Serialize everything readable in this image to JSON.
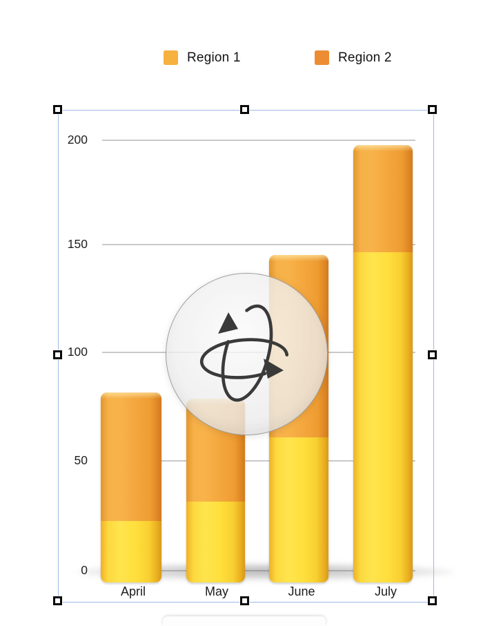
{
  "legend": {
    "items": [
      {
        "label": "Region 1",
        "color": "#F6B13F"
      },
      {
        "label": "Region 2",
        "color": "#EE8C33"
      }
    ]
  },
  "chart_data": {
    "type": "bar",
    "variant": "3d-stacked-column",
    "stacked": true,
    "title": "",
    "categories": [
      "April",
      "May",
      "June",
      "July"
    ],
    "series": [
      {
        "name": "Region 1",
        "color": "#F6B13F",
        "values": [
          23,
          32,
          62,
          148
        ]
      },
      {
        "name": "Region 2",
        "color": "#EE8C33",
        "values": [
          60,
          48,
          85,
          50
        ]
      }
    ],
    "totals": [
      83,
      80,
      147,
      198
    ],
    "ylim": [
      0,
      200
    ],
    "y_ticks": [
      "200",
      "150",
      "100",
      "50",
      "0"
    ],
    "grid": true,
    "legend_position": "top"
  },
  "selection": {
    "border_color": "#9db7e8",
    "handle_count": 8
  },
  "widgets": {
    "rotate_3d_label": "3D rotate control"
  }
}
